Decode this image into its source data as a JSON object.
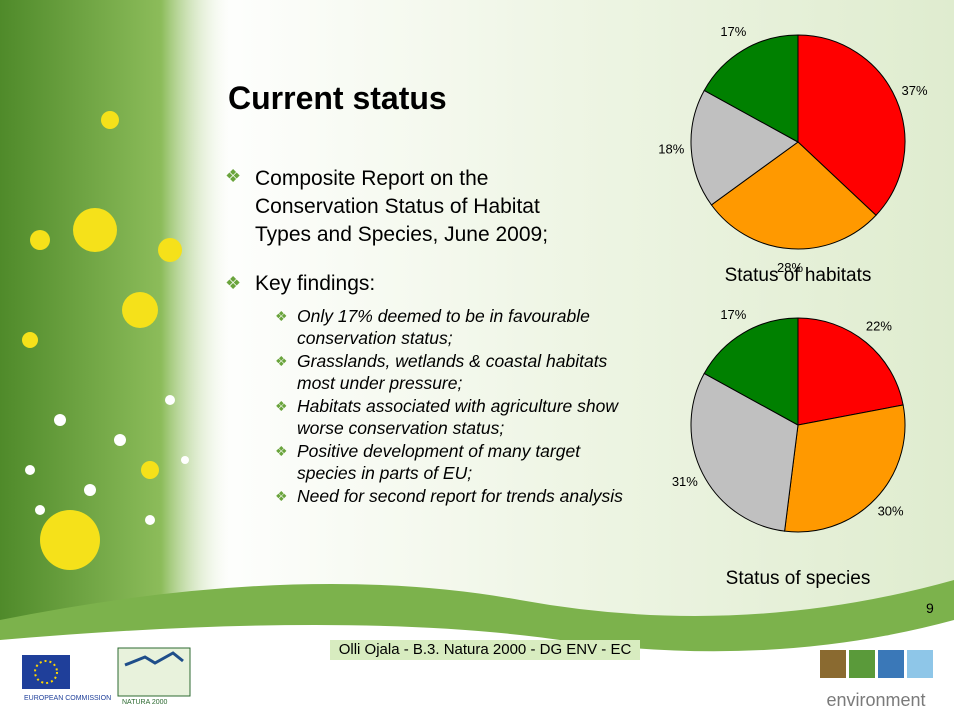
{
  "title": "Current status",
  "bullets": [
    {
      "text": "Composite Report on the Conservation Status of Habitat Types and Species, June 2009;"
    },
    {
      "text": "Key findings:",
      "sub": [
        "Only 17% deemed to be in favourable conservation status;",
        "Grasslands, wetlands & coastal habitats most under pressure;",
        "Habitats associated with agriculture show worse conservation status;",
        "Positive development of many target species in parts of EU;",
        "Need for second report for trends analysis"
      ]
    }
  ],
  "page_number": "9",
  "footer": "Olli Ojala - B.3. Natura 2000 - DG ENV - EC",
  "logos": {
    "eu": "EUROPEAN COMMISSION",
    "natura": "NATURA 2000",
    "env": "environment"
  },
  "chart_data": [
    {
      "type": "pie",
      "title": "Status of habitats",
      "values": [
        37,
        28,
        18,
        17
      ],
      "value_labels": [
        "37%",
        "28%",
        "18%",
        "17%"
      ],
      "colors": [
        "#ff0000",
        "#ff9900",
        "#c0c0c0",
        "#008000"
      ]
    },
    {
      "type": "pie",
      "title": "Status of species",
      "values": [
        22,
        30,
        31,
        17
      ],
      "value_labels": [
        "22%",
        "30%",
        "31%",
        "17%"
      ],
      "colors": [
        "#ff0000",
        "#ff9900",
        "#c0c0c0",
        "#008000"
      ]
    }
  ]
}
